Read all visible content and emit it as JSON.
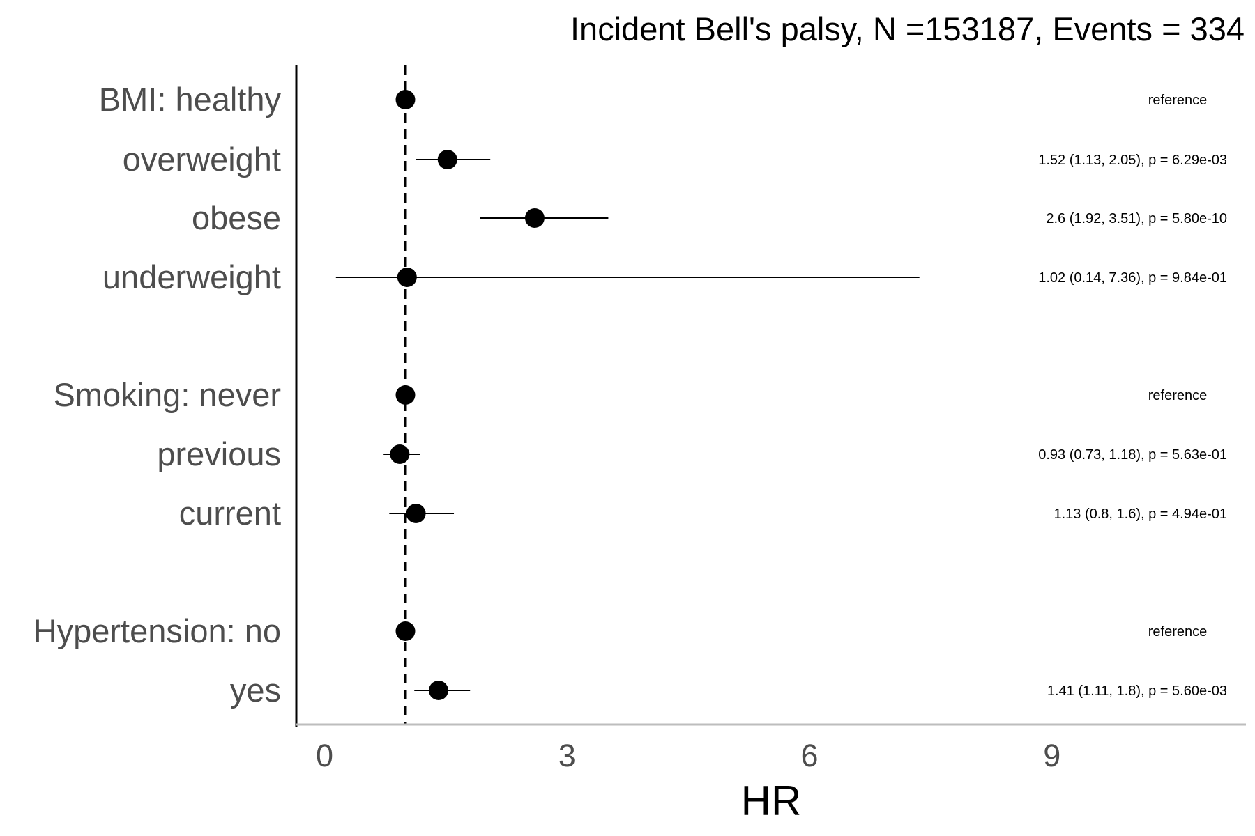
{
  "chart_data": {
    "type": "scatter",
    "title": "Incident Bell's palsy, N =153187, Events = 334",
    "xlabel": "HR",
    "ylabel": "",
    "xlim": [
      -0.35,
      11.4
    ],
    "x_ticks": [
      0,
      3,
      6,
      9
    ],
    "x_tick_labels": [
      "0",
      "3",
      "6",
      "9"
    ],
    "reference_line": 1,
    "grid": false,
    "legend": "none",
    "rows": [
      {
        "label": "BMI: healthy",
        "hr": 1.0,
        "lower": null,
        "upper": null,
        "annotation": "reference"
      },
      {
        "label": "overweight",
        "hr": 1.52,
        "lower": 1.13,
        "upper": 2.05,
        "annotation": "1.52 (1.13, 2.05), p = 6.29e-03"
      },
      {
        "label": "obese",
        "hr": 2.6,
        "lower": 1.92,
        "upper": 3.51,
        "annotation": "2.6 (1.92, 3.51), p = 5.80e-10"
      },
      {
        "label": "underweight",
        "hr": 1.02,
        "lower": 0.14,
        "upper": 7.36,
        "annotation": "1.02 (0.14, 7.36), p = 9.84e-01"
      },
      {
        "label": "Smoking: never",
        "hr": 1.0,
        "lower": null,
        "upper": null,
        "annotation": "reference"
      },
      {
        "label": "previous",
        "hr": 0.93,
        "lower": 0.73,
        "upper": 1.18,
        "annotation": "0.93 (0.73, 1.18), p = 5.63e-01"
      },
      {
        "label": "current",
        "hr": 1.13,
        "lower": 0.8,
        "upper": 1.6,
        "annotation": "1.13 (0.8, 1.6), p = 4.94e-01"
      },
      {
        "label": "Hypertension: no",
        "hr": 1.0,
        "lower": null,
        "upper": null,
        "annotation": "reference"
      },
      {
        "label": "yes",
        "hr": 1.41,
        "lower": 1.11,
        "upper": 1.8,
        "annotation": "1.41 (1.11, 1.8), p = 5.60e-03"
      }
    ]
  }
}
